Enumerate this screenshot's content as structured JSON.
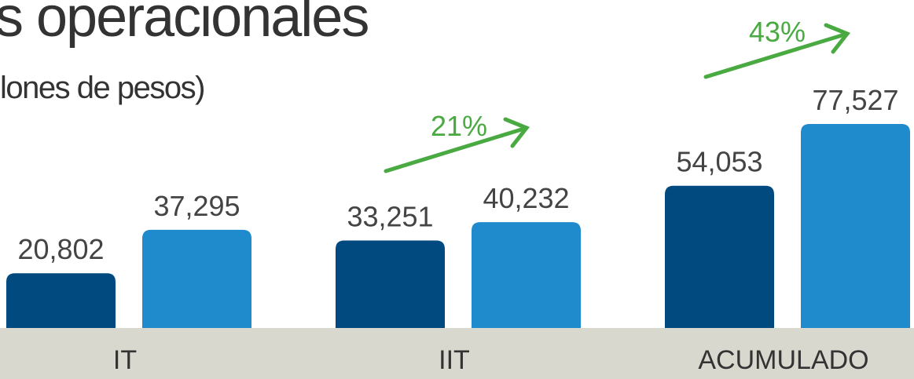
{
  "chart_data": {
    "type": "bar",
    "title": "s operacionales",
    "subtitle": "lones de pesos)",
    "categories": [
      "IT",
      "IIT",
      "ACUMULADO"
    ],
    "series": [
      {
        "color": "#004a80",
        "values": [
          20802,
          33251,
          54053
        ],
        "value_labels": [
          "20,802",
          "33,251",
          "54,053"
        ]
      },
      {
        "color": "#1f8bcd",
        "values": [
          37295,
          40232,
          77527
        ],
        "value_labels": [
          "37,295",
          "40,232",
          "77,527"
        ]
      }
    ],
    "annotations": [
      "21%",
      "43%"
    ]
  }
}
